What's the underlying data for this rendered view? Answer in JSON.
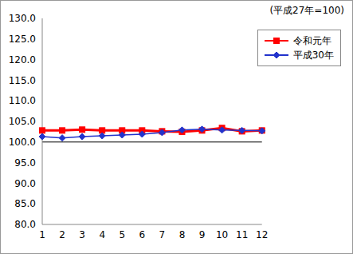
{
  "chart_data": {
    "type": "line",
    "annotation": "(平成27年=100)",
    "categories": [
      1,
      2,
      3,
      4,
      5,
      6,
      7,
      8,
      9,
      10,
      11,
      12
    ],
    "series": [
      {
        "name": "令和元年",
        "color": "#ff0000",
        "marker": "square",
        "values": [
          102.8,
          102.8,
          103.0,
          102.8,
          102.8,
          102.8,
          102.6,
          102.5,
          102.8,
          103.4,
          102.6,
          102.8
        ]
      },
      {
        "name": "平成30年",
        "color": "#2233cc",
        "marker": "diamond",
        "values": [
          101.3,
          101.0,
          101.3,
          101.5,
          101.7,
          101.9,
          102.3,
          102.9,
          103.1,
          102.9,
          102.8,
          102.7
        ]
      }
    ],
    "ylim": [
      80,
      130
    ],
    "yticks": [
      {
        "value": 80,
        "label": "80.0"
      },
      {
        "value": 85,
        "label": "85.0"
      },
      {
        "value": 90,
        "label": "90.0"
      },
      {
        "value": 95,
        "label": "95.0"
      },
      {
        "value": 100,
        "label": "100.0"
      },
      {
        "value": 105,
        "label": "105.0"
      },
      {
        "value": 110,
        "label": "110.0"
      },
      {
        "value": 115,
        "label": "115.0"
      },
      {
        "value": 120,
        "label": "120.0"
      },
      {
        "value": 125,
        "label": "125.0"
      },
      {
        "value": 130,
        "label": "130.0"
      }
    ],
    "reference_line": 100,
    "legend": "top-right",
    "grid": false
  }
}
